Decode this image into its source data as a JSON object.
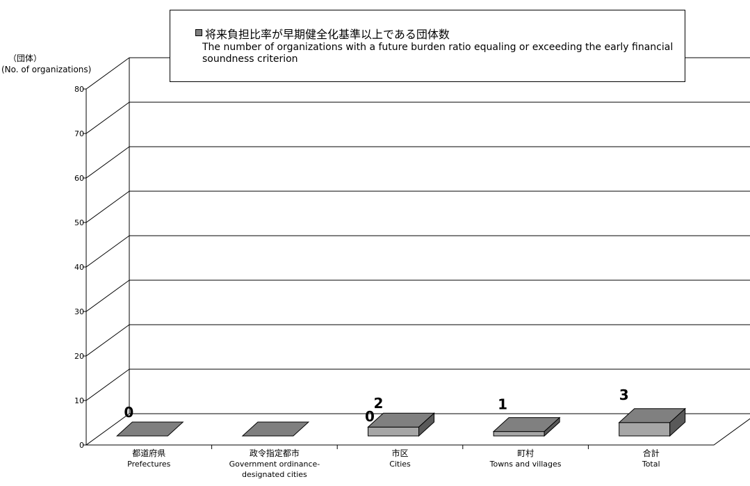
{
  "chart_data": {
    "type": "bar",
    "title": "",
    "legend": {
      "label_jp": "将来負担比率が早期健全化基準以上である団体数",
      "label_en": "The number of organizations with a future burden ratio equaling or exceeding the early financial soundness criterion"
    },
    "ylabel_jp": "（団体）",
    "ylabel_en": "(No. of organizations)",
    "ylim": [
      0,
      80
    ],
    "yticks": [
      "0",
      "10",
      "20",
      "30",
      "40",
      "50",
      "60",
      "70",
      "80"
    ],
    "categories": [
      {
        "jp": "都道府県",
        "en": [
          "Prefectures"
        ]
      },
      {
        "jp": "政令指定都市",
        "en": [
          "Government ordinance-",
          "designated cities"
        ]
      },
      {
        "jp": "市区",
        "en": [
          "Cities"
        ]
      },
      {
        "jp": "町村",
        "en": [
          "Towns and villages"
        ]
      },
      {
        "jp": "合計",
        "en": [
          "Total"
        ]
      }
    ],
    "values": [
      0,
      0,
      2,
      1,
      3
    ],
    "value_labels": [
      "0",
      "0",
      "2",
      "1",
      "3"
    ],
    "grid": true,
    "colors": {
      "front": "#a6a6a6",
      "top": "#808080",
      "side": "#595959",
      "flat": "#7f7f7f"
    }
  }
}
